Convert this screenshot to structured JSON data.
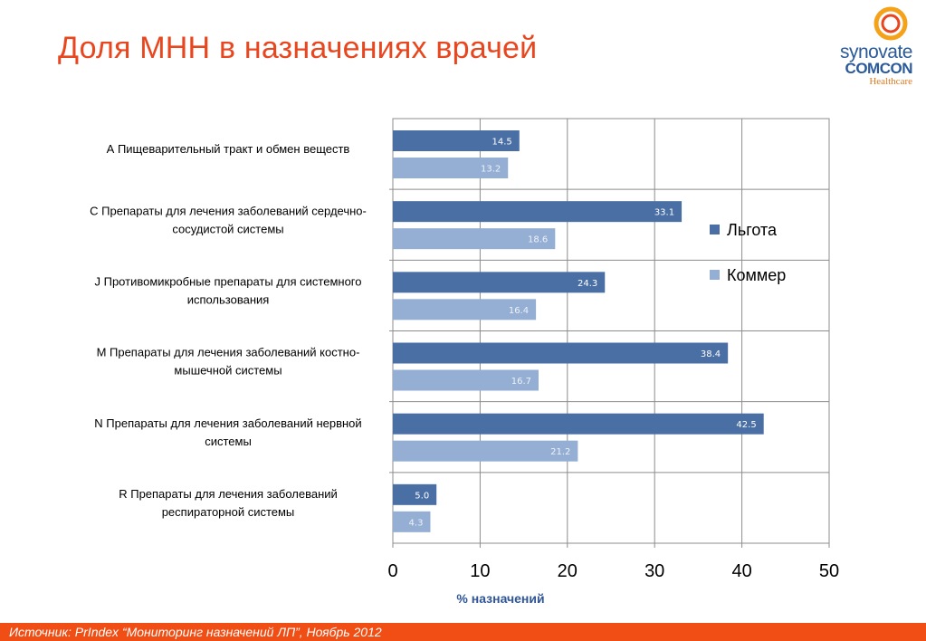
{
  "title": "Доля МНН в назначениях врачей",
  "logo": {
    "line1": "synovate",
    "line2": "COMCON",
    "line3": "Healthcare"
  },
  "footer": {
    "source": "Источник: PrIndex “Мониторинг назначений ЛП”, Ноябрь 2012"
  },
  "colors": {
    "title": "#e8461e",
    "series1": "#4a6fa5",
    "series2": "#95aed4",
    "footer": "#f04e14",
    "xlabel": "#2f5597"
  },
  "chart_data": {
    "type": "bar",
    "orientation": "horizontal",
    "categories": [
      [
        "А Пищеварительный тракт и обмен веществ"
      ],
      [
        "С Препараты для лечения заболеваний сердечно-",
        "сосудистой системы"
      ],
      [
        "J Противомикробные препараты для системного",
        "использования"
      ],
      [
        "M Препараты для лечения заболеваний костно-",
        "мышечной системы"
      ],
      [
        "N Препараты для лечения заболеваний нервной",
        "системы"
      ],
      [
        "R Препараты для лечения заболеваний",
        "респираторной системы"
      ]
    ],
    "series": [
      {
        "name": "Льгота",
        "values": [
          14.5,
          33.1,
          24.3,
          38.4,
          42.5,
          5.0
        ],
        "color": "#4a6fa5"
      },
      {
        "name": "Коммер",
        "values": [
          13.2,
          18.6,
          16.4,
          16.7,
          21.2,
          4.3
        ],
        "color": "#95aed4"
      }
    ],
    "xlabel": "% назначений",
    "xlim": [
      0,
      50
    ],
    "xticks": [
      0,
      10,
      20,
      30,
      40,
      50
    ],
    "grid": true,
    "legend": "right"
  }
}
